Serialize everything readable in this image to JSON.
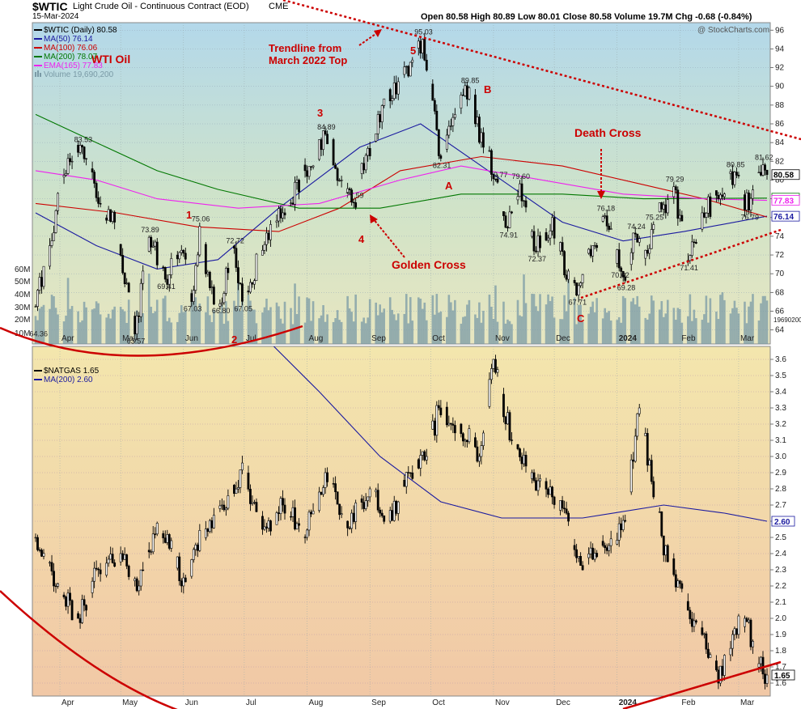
{
  "header": {
    "symbol": "$WTIC",
    "title": "Light Crude Oil - Continuous Contract (EOD)",
    "exchange": "CME",
    "date": "15-Mar-2024",
    "ohlc": "Open 80.58  High 80.89  Low 80.01  Close 80.58  Volume 19.7M  Chg -0.68 (-0.84%)",
    "watermark": "@ StockCharts.com"
  },
  "colors": {
    "price": "#000000",
    "ma50": "#1a1aa0",
    "ma100": "#cc0000",
    "ma200": "#007700",
    "ema165": "#ee22ee",
    "volume": "#7a9aa6",
    "annotation": "#cc0000",
    "ng_ma200": "#1a1aa0"
  },
  "chart_data": [
    {
      "type": "line",
      "name": "WTI Crude Oil daily",
      "title": "WTI Oil",
      "x_months": [
        "Apr",
        "May",
        "Jun",
        "Jul",
        "Aug",
        "Sep",
        "Oct",
        "Nov",
        "Dec",
        "2024",
        "Feb",
        "Mar"
      ],
      "y_ticks": [
        64,
        66,
        68,
        70,
        72,
        74,
        76,
        78,
        80,
        82,
        84,
        86,
        88,
        90,
        92,
        94,
        96
      ],
      "ylim": [
        62.5,
        96.8
      ],
      "volume_ticks": [
        "10M",
        "20M",
        "30M",
        "40M",
        "50M",
        "60M"
      ],
      "volume_label_right": "19690200",
      "legend": [
        {
          "label": "$WTIC (Daily) 80.58",
          "color": "#000000"
        },
        {
          "label": "MA(50) 76.14",
          "color": "#1a1aa0"
        },
        {
          "label": "MA(100) 76.06",
          "color": "#cc0000"
        },
        {
          "label": "MA(200) 78.07",
          "color": "#007700"
        },
        {
          "label": "EMA(165) 77.83",
          "color": "#ee22ee"
        },
        {
          "label": "Volume 19,690,200",
          "color": "#7a9aa6"
        }
      ],
      "price_key": [
        [
          "2023-03-20",
          66.5
        ],
        [
          "2023-03-27",
          73.0
        ],
        [
          "2023-04-03",
          80.5
        ],
        [
          "2023-04-12",
          83.53
        ],
        [
          "2023-04-20",
          77.5
        ],
        [
          "2023-04-28",
          75.5
        ],
        [
          "2023-05-04",
          69.0
        ],
        [
          "2023-05-08",
          63.57
        ],
        [
          "2023-05-15",
          73.89
        ],
        [
          "2023-05-23",
          69.41
        ],
        [
          "2023-05-31",
          72.5
        ],
        [
          "2023-06-05",
          67.03
        ],
        [
          "2023-06-09",
          75.06
        ],
        [
          "2023-06-14",
          68.5
        ],
        [
          "2023-06-19",
          66.8
        ],
        [
          "2023-06-26",
          72.72
        ],
        [
          "2023-06-30",
          67.05
        ],
        [
          "2023-07-10",
          72.5
        ],
        [
          "2023-07-20",
          76.5
        ],
        [
          "2023-07-31",
          81.0
        ],
        [
          "2023-08-10",
          84.89
        ],
        [
          "2023-08-18",
          80.0
        ],
        [
          "2023-08-24",
          77.59
        ],
        [
          "2023-09-05",
          87.0
        ],
        [
          "2023-09-15",
          90.5
        ],
        [
          "2023-09-27",
          95.03
        ],
        [
          "2023-10-02",
          88.5
        ],
        [
          "2023-10-06",
          82.31
        ],
        [
          "2023-10-13",
          87.0
        ],
        [
          "2023-10-20",
          89.85
        ],
        [
          "2023-10-27",
          83.5
        ],
        [
          "2023-11-03",
          79.77
        ],
        [
          "2023-11-08",
          74.91
        ],
        [
          "2023-11-14",
          79.6
        ],
        [
          "2023-11-22",
          72.37
        ],
        [
          "2023-11-30",
          76.0
        ],
        [
          "2023-12-07",
          69.4
        ],
        [
          "2023-12-12",
          67.71
        ],
        [
          "2023-12-20",
          73.0
        ],
        [
          "2023-12-26",
          76.18
        ],
        [
          "2024-01-02",
          70.62
        ],
        [
          "2024-01-05",
          69.28
        ],
        [
          "2024-01-10",
          74.24
        ],
        [
          "2024-01-15",
          72.5
        ],
        [
          "2024-01-19",
          75.25
        ],
        [
          "2024-01-29",
          79.29
        ],
        [
          "2024-02-05",
          71.41
        ],
        [
          "2024-02-12",
          76.5
        ],
        [
          "2024-02-20",
          78.0
        ],
        [
          "2024-02-28",
          80.85
        ],
        [
          "2024-03-06",
          76.79
        ],
        [
          "2024-03-13",
          81.62
        ],
        [
          "2024-03-15",
          80.58
        ]
      ],
      "ma_series": [
        {
          "name": "MA(50)",
          "values": [
            [
              0,
              76.5
            ],
            [
              30,
              73.0
            ],
            [
              60,
              70.5
            ],
            [
              90,
              71.5
            ],
            [
              120,
              77.0
            ],
            [
              160,
              83.5
            ],
            [
              190,
              86.0
            ],
            [
              230,
              80.0
            ],
            [
              260,
              75.5
            ],
            [
              290,
              73.5
            ],
            [
              320,
              74.5
            ],
            [
              361,
              76.14
            ]
          ]
        },
        {
          "name": "MA(100)",
          "values": [
            [
              0,
              77.5
            ],
            [
              40,
              76.5
            ],
            [
              80,
              75.0
            ],
            [
              120,
              74.5
            ],
            [
              150,
              77.0
            ],
            [
              180,
              81.0
            ],
            [
              220,
              82.5
            ],
            [
              260,
              81.5
            ],
            [
              300,
              79.5
            ],
            [
              330,
              78.0
            ],
            [
              361,
              76.06
            ]
          ]
        },
        {
          "name": "MA(200)",
          "values": [
            [
              0,
              87.0
            ],
            [
              30,
              84.0
            ],
            [
              60,
              81.0
            ],
            [
              90,
              79.0
            ],
            [
              130,
              77.0
            ],
            [
              170,
              77.0
            ],
            [
              210,
              78.5
            ],
            [
              260,
              78.5
            ],
            [
              300,
              78.0
            ],
            [
              361,
              78.07
            ]
          ]
        },
        {
          "name": "EMA(165)",
          "values": [
            [
              0,
              81.0
            ],
            [
              30,
              80.0
            ],
            [
              60,
              78.0
            ],
            [
              100,
              77.0
            ],
            [
              140,
              77.5
            ],
            [
              180,
              80.0
            ],
            [
              210,
              81.5
            ],
            [
              250,
              80.0
            ],
            [
              290,
              78.5
            ],
            [
              330,
              78.0
            ],
            [
              361,
              77.83
            ]
          ]
        }
      ],
      "annotations": [
        {
          "text": "Trendline from March 2022 Top"
        },
        {
          "text": "Death Cross"
        },
        {
          "text": "Golden Cross"
        },
        {
          "text": "1"
        },
        {
          "text": "2"
        },
        {
          "text": "3"
        },
        {
          "text": "4"
        },
        {
          "text": "5"
        },
        {
          "text": "A"
        },
        {
          "text": "B"
        },
        {
          "text": "C"
        }
      ]
    },
    {
      "type": "line",
      "name": "Natural Gas daily",
      "title": "",
      "x_months": [
        "Apr",
        "May",
        "Jun",
        "Jul",
        "Aug",
        "Sep",
        "Oct",
        "Nov",
        "Dec",
        "2024",
        "Feb",
        "Mar"
      ],
      "y_ticks": [
        1.6,
        1.7,
        1.8,
        1.9,
        2.0,
        2.1,
        2.2,
        2.3,
        2.4,
        2.5,
        2.6,
        2.7,
        2.8,
        2.9,
        3.0,
        3.1,
        3.2,
        3.3,
        3.4,
        3.5,
        3.6
      ],
      "ylim": [
        1.52,
        3.68
      ],
      "legend": [
        {
          "label": "$NATGAS 1.65",
          "color": "#000000"
        },
        {
          "label": "MA(200) 2.60",
          "color": "#1a1aa0"
        }
      ],
      "price_key": [
        [
          "2023-03-20",
          2.5
        ],
        [
          "2023-03-29",
          2.2
        ],
        [
          "2023-04-10",
          2.0
        ],
        [
          "2023-04-20",
          2.3
        ],
        [
          "2023-05-01",
          2.4
        ],
        [
          "2023-05-10",
          2.2
        ],
        [
          "2023-05-20",
          2.6
        ],
        [
          "2023-06-01",
          2.25
        ],
        [
          "2023-06-10",
          2.5
        ],
        [
          "2023-06-20",
          2.7
        ],
        [
          "2023-07-01",
          2.9
        ],
        [
          "2023-07-10",
          2.55
        ],
        [
          "2023-07-20",
          2.7
        ],
        [
          "2023-07-31",
          2.5
        ],
        [
          "2023-08-10",
          2.9
        ],
        [
          "2023-08-20",
          2.6
        ],
        [
          "2023-09-01",
          2.8
        ],
        [
          "2023-09-10",
          2.6
        ],
        [
          "2023-09-20",
          2.9
        ],
        [
          "2023-09-29",
          3.0
        ],
        [
          "2023-10-05",
          3.3
        ],
        [
          "2023-10-15",
          3.2
        ],
        [
          "2023-10-25",
          3.0
        ],
        [
          "2023-11-01",
          3.6
        ],
        [
          "2023-11-10",
          3.1
        ],
        [
          "2023-11-20",
          2.9
        ],
        [
          "2023-11-30",
          2.75
        ],
        [
          "2023-12-08",
          2.6
        ],
        [
          "2023-12-15",
          2.3
        ],
        [
          "2023-12-25",
          2.45
        ],
        [
          "2024-01-05",
          2.6
        ],
        [
          "2024-01-12",
          3.3
        ],
        [
          "2024-01-19",
          2.75
        ],
        [
          "2024-01-26",
          2.35
        ],
        [
          "2024-02-05",
          2.05
        ],
        [
          "2024-02-12",
          1.9
        ],
        [
          "2024-02-20",
          1.6
        ],
        [
          "2024-02-27",
          1.9
        ],
        [
          "2024-03-04",
          2.0
        ],
        [
          "2024-03-11",
          1.72
        ],
        [
          "2024-03-15",
          1.65
        ]
      ],
      "ma_series": [
        {
          "name": "MA(200)",
          "values": [
            [
              100,
              3.9
            ],
            [
              140,
              3.4
            ],
            [
              170,
              3.0
            ],
            [
              200,
              2.72
            ],
            [
              230,
              2.62
            ],
            [
              270,
              2.62
            ],
            [
              310,
              2.7
            ],
            [
              340,
              2.65
            ],
            [
              361,
              2.6
            ]
          ]
        }
      ]
    }
  ]
}
